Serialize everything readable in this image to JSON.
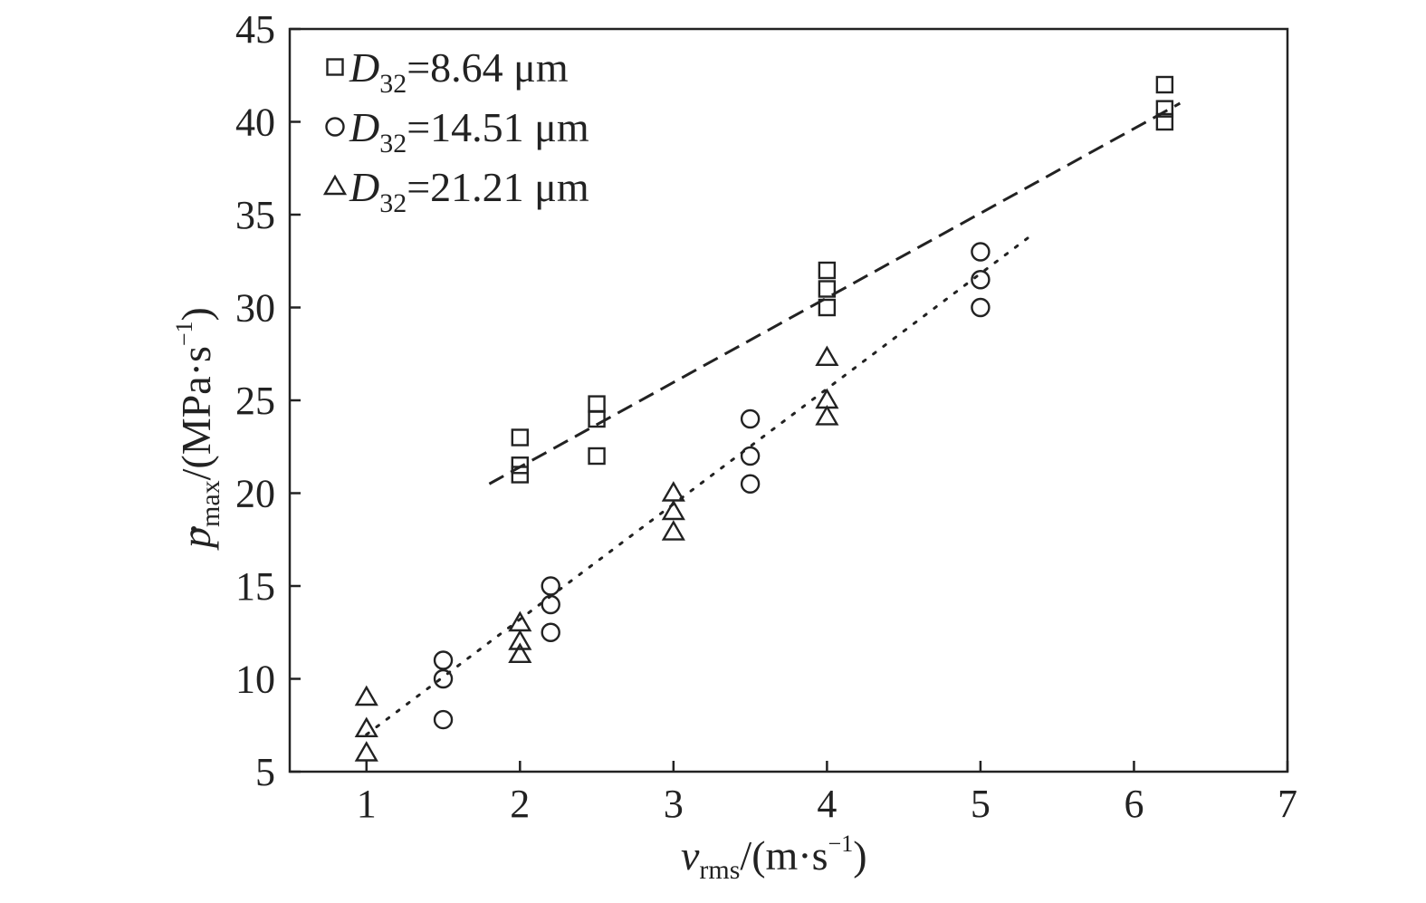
{
  "chart_data": {
    "type": "scatter",
    "title": "",
    "xlabel": {
      "main": "v",
      "sub": "rms",
      "unit_open": "/(m·s",
      "unit_sup": "−1",
      "unit_close": ")"
    },
    "ylabel": {
      "main": "p",
      "sub": "max",
      "unit_open": "/(MPa·s",
      "unit_sup": "−1",
      "unit_close": ")"
    },
    "xlim": [
      0.5,
      7
    ],
    "ylim": [
      5,
      45
    ],
    "x_ticks": [
      "1",
      "2",
      "3",
      "4",
      "5",
      "6",
      "7"
    ],
    "y_ticks": [
      "5",
      "10",
      "15",
      "20",
      "25",
      "30",
      "35",
      "40",
      "45"
    ],
    "grid": false,
    "legend_position": "top-left",
    "series": [
      {
        "name": {
          "symbol": "D",
          "sub": "32",
          "rest": "=8.64 μm"
        },
        "marker": "square",
        "points": [
          [
            2,
            23
          ],
          [
            2,
            21.5
          ],
          [
            2,
            21
          ],
          [
            2.5,
            24.8
          ],
          [
            2.5,
            24
          ],
          [
            2.5,
            22
          ],
          [
            4,
            32
          ],
          [
            4,
            31
          ],
          [
            4,
            30
          ],
          [
            6.2,
            42
          ],
          [
            6.2,
            40.7
          ],
          [
            6.2,
            40
          ]
        ],
        "fit": {
          "style": "dashed",
          "from": [
            1.8,
            20.5
          ],
          "to": [
            6.3,
            41
          ]
        }
      },
      {
        "name": {
          "symbol": "D",
          "sub": "32",
          "rest": "=14.51 μm"
        },
        "marker": "circle",
        "points": [
          [
            1.5,
            11
          ],
          [
            1.5,
            10
          ],
          [
            1.5,
            7.8
          ],
          [
            2.2,
            15
          ],
          [
            2.2,
            14
          ],
          [
            2.2,
            12.5
          ],
          [
            3.5,
            24
          ],
          [
            3.5,
            22
          ],
          [
            3.5,
            20.5
          ],
          [
            5,
            33
          ],
          [
            5,
            31.5
          ],
          [
            5,
            30
          ]
        ],
        "fit": {
          "style": "dotted",
          "from": [
            1,
            7
          ],
          "to": [
            5.35,
            34
          ]
        }
      },
      {
        "name": {
          "symbol": "D",
          "sub": "32",
          "rest": "=21.21 μm"
        },
        "marker": "triangle",
        "points": [
          [
            1,
            9
          ],
          [
            1,
            7.3
          ],
          [
            1,
            6
          ],
          [
            2,
            13
          ],
          [
            2,
            12
          ],
          [
            2,
            11.3
          ],
          [
            3,
            20
          ],
          [
            3,
            19
          ],
          [
            3,
            17.9
          ],
          [
            4,
            27.3
          ],
          [
            4,
            25
          ],
          [
            4,
            24.1
          ]
        ]
      }
    ]
  }
}
